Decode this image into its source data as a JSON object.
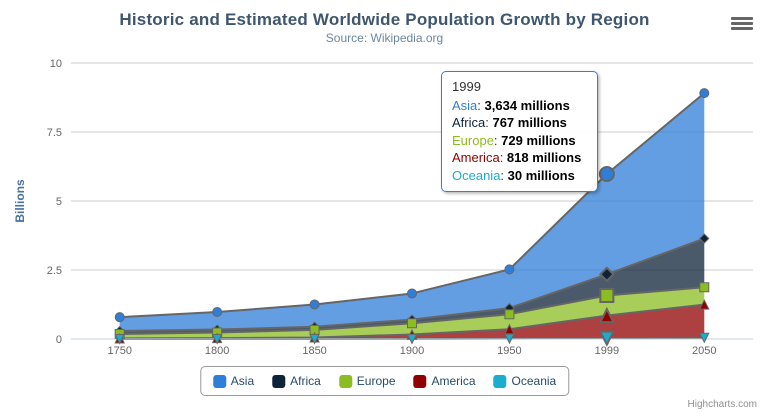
{
  "header": {
    "title": "Historic and Estimated Worldwide Population Growth by Region",
    "subtitle": "Source: Wikipedia.org"
  },
  "chart_data": {
    "type": "area",
    "stacking": "normal",
    "title": "Historic and Estimated Worldwide Population Growth by Region",
    "subtitle": "Source: Wikipedia.org",
    "categories": [
      "1750",
      "1800",
      "1850",
      "1900",
      "1950",
      "1999",
      "2050"
    ],
    "series": [
      {
        "name": "Asia",
        "color": "#2f7ed8",
        "marker": "circle",
        "values": [
          502,
          635,
          809,
          947,
          1402,
          3634,
          5268
        ]
      },
      {
        "name": "Africa",
        "color": "#0d233a",
        "marker": "diamond",
        "values": [
          106,
          107,
          111,
          133,
          221,
          767,
          1766
        ]
      },
      {
        "name": "Europe",
        "color": "#8bbc21",
        "marker": "square",
        "values": [
          163,
          203,
          276,
          408,
          547,
          729,
          628
        ]
      },
      {
        "name": "America",
        "color": "#910000",
        "marker": "triangle",
        "values": [
          18,
          31,
          54,
          156,
          339,
          818,
          1201
        ]
      },
      {
        "name": "Oceania",
        "color": "#1aadce",
        "marker": "triangle-down",
        "values": [
          2,
          2,
          2,
          6,
          13,
          30,
          46
        ]
      }
    ],
    "units": "millions",
    "xlabel": "",
    "ylabel": "Billions",
    "yticks": [
      0,
      2.5,
      5,
      7.5,
      10
    ],
    "ytick_labels": [
      "0",
      "2.5",
      "5",
      "7.5",
      "10"
    ],
    "ylim_billions": [
      0,
      10
    ],
    "grid": true,
    "legend_position": "bottom-center",
    "line_color": "#666666",
    "fill_opacity": 0.75,
    "grid_color": "#CCCCCC",
    "axis_line_color": "#C0D0E0",
    "axis_label_color": "#666666",
    "yaxis_title_color": "#4572A7",
    "hover_category_index": 5
  },
  "tooltip": {
    "header": "1999",
    "border_color": "#2f7ed8",
    "rows": [
      {
        "name": "Asia",
        "color": "#2f7ed8",
        "value": "3,634 millions"
      },
      {
        "name": "Africa",
        "color": "#0d233a",
        "value": "767 millions"
      },
      {
        "name": "Europe",
        "color": "#8bbc21",
        "value": "729 millions"
      },
      {
        "name": "America",
        "color": "#910000",
        "value": "818 millions"
      },
      {
        "name": "Oceania",
        "color": "#1aadce",
        "value": "30 millions"
      }
    ]
  },
  "legend": {
    "items": [
      {
        "label": "Asia",
        "color": "#2f7ed8"
      },
      {
        "label": "Africa",
        "color": "#0d233a"
      },
      {
        "label": "Europe",
        "color": "#8bbc21"
      },
      {
        "label": "America",
        "color": "#910000"
      },
      {
        "label": "Oceania",
        "color": "#1aadce"
      }
    ],
    "text_color": "#274B6D"
  },
  "credits": {
    "label": "Highcharts.com"
  }
}
